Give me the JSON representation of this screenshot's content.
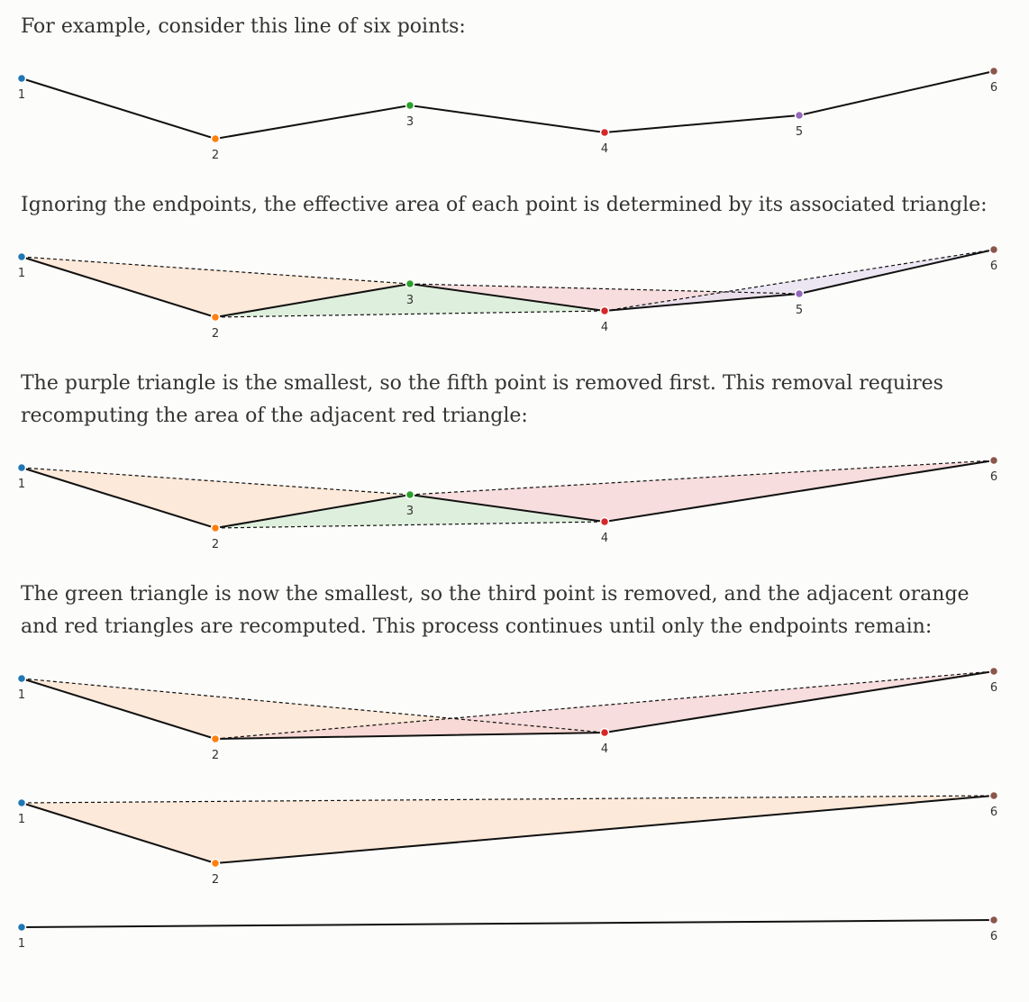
{
  "paragraphs": {
    "p1": "For example, consider this line of six points:",
    "p2": "Ignoring the endpoints, the effective area of each point is determined by its associated triangle:",
    "p3": "The purple triangle is the smallest, so the fifth point is removed first. This removal requires recomputing the area of the adjacent red triangle:",
    "p4": "The green triangle is now the smallest, so the third point is removed, and the adjacent orange and red triangles are recomputed. This process continues until only the endpoints remain:"
  },
  "point_labels": [
    "1",
    "2",
    "3",
    "4",
    "5",
    "6"
  ],
  "colors": {
    "p1": "#1f77b4",
    "p2": "#ff7f0e",
    "p3": "#2ca02c",
    "p4": "#d62728",
    "p5": "#9467bd",
    "p6": "#8c564b",
    "fill_orange": "#fde3cd",
    "fill_green": "#d5ebd3",
    "fill_red": "#f5d3d3",
    "fill_purple": "#e7dff0"
  },
  "stages": [
    {
      "name": "initial-line",
      "points": [
        1,
        2,
        3,
        4,
        5,
        6
      ],
      "triangles": []
    },
    {
      "name": "all-triangles",
      "points": [
        1,
        2,
        3,
        4,
        5,
        6
      ],
      "triangles": [
        2,
        3,
        4,
        5
      ]
    },
    {
      "name": "after-removing-5",
      "points": [
        1,
        2,
        3,
        4,
        6
      ],
      "triangles": [
        2,
        3,
        4
      ]
    },
    {
      "name": "after-removing-3",
      "points": [
        1,
        2,
        4,
        6
      ],
      "triangles": [
        2,
        4
      ]
    },
    {
      "name": "after-removing-4",
      "points": [
        1,
        2,
        6
      ],
      "triangles": [
        2
      ]
    },
    {
      "name": "endpoints-only",
      "points": [
        1,
        6
      ],
      "triangles": []
    }
  ]
}
